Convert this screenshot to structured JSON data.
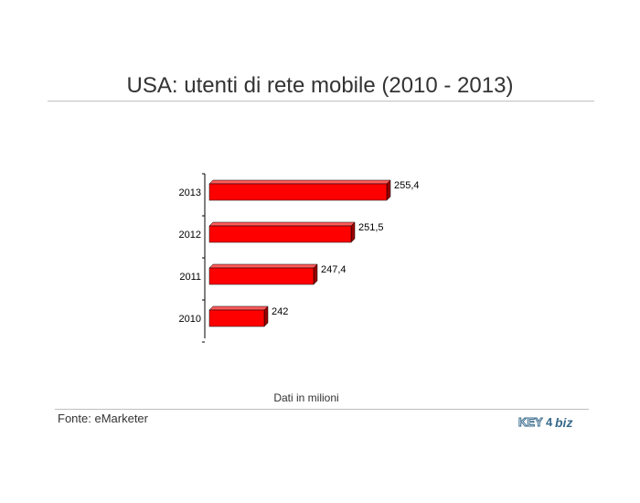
{
  "chart_data": {
    "type": "bar",
    "orientation": "horizontal",
    "title": "USA: utenti di rete mobile (2010 - 2013)",
    "categories": [
      "2013",
      "2012",
      "2011",
      "2010"
    ],
    "values": [
      255.4,
      251.5,
      247.4,
      242
    ],
    "value_labels": [
      "255,4",
      "251,5",
      "247,4",
      "242"
    ],
    "value_axis_range": [
      236,
      258
    ],
    "grid": false,
    "legend": "none",
    "bar_color": "#ff0000"
  },
  "note": "Dati in milioni",
  "source": "Fonte: eMarketer",
  "logo": {
    "key": "KEY",
    "num": "4",
    "biz": "biz"
  }
}
